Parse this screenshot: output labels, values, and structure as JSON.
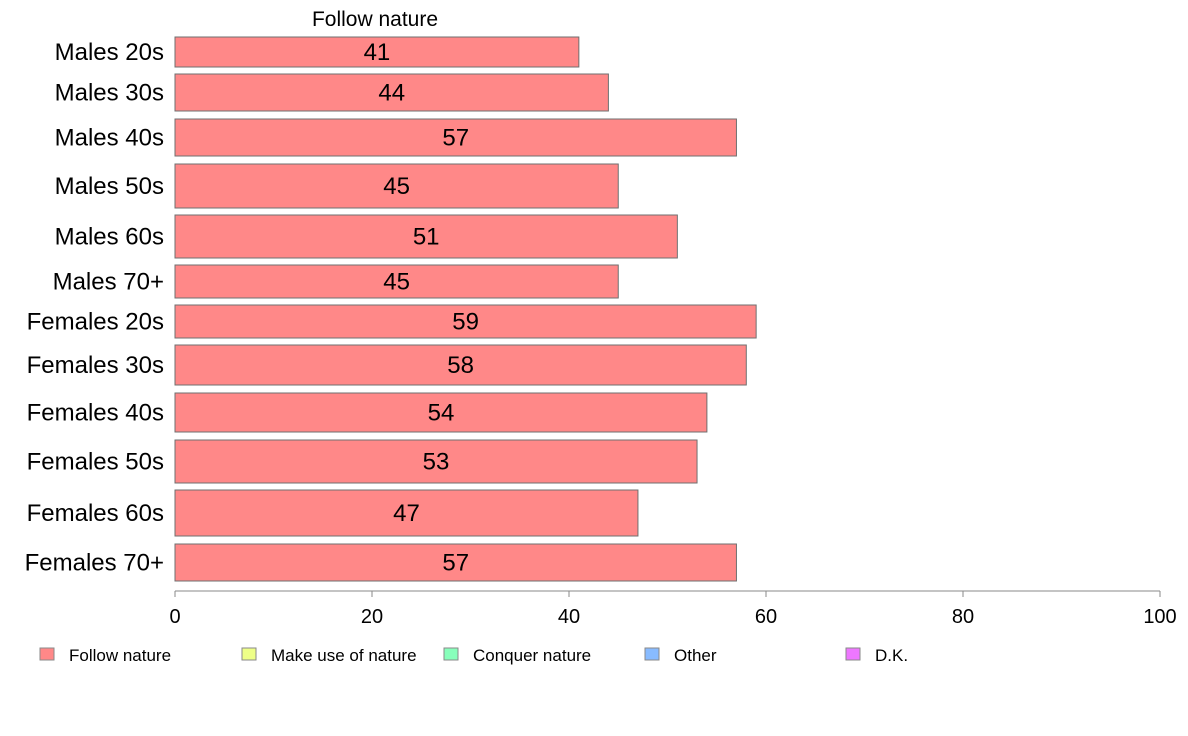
{
  "chart_data": {
    "type": "bar",
    "orientation": "horizontal",
    "title": "Follow nature",
    "categories": [
      "Males 20s",
      "Males 30s",
      "Males 40s",
      "Males 50s",
      "Males 60s",
      "Males 70+",
      "Females 20s",
      "Females 30s",
      "Females 40s",
      "Females 50s",
      "Females 60s",
      "Females 70+"
    ],
    "values": [
      41,
      44,
      57,
      45,
      51,
      45,
      59,
      58,
      54,
      53,
      47,
      57
    ],
    "data_labels": [
      "41",
      "44",
      "57",
      "45",
      "51",
      "45",
      "59",
      "58",
      "54",
      "53",
      "47",
      "57"
    ],
    "xlim": [
      0,
      100
    ],
    "xticks": [
      "0",
      "20",
      "40",
      "60",
      "80",
      "100"
    ],
    "grid": false,
    "bar_color": "#ff8888",
    "legend": {
      "placement": "bottom",
      "entries": [
        {
          "name": "Follow nature",
          "color": "#ff8888"
        },
        {
          "name": "Make use of nature",
          "color": "#eeff88"
        },
        {
          "name": "Conquer nature",
          "color": "#88ffbb"
        },
        {
          "name": "Other",
          "color": "#88bbff"
        },
        {
          "name": "D.K.",
          "color": "#ee77ff"
        }
      ]
    }
  }
}
